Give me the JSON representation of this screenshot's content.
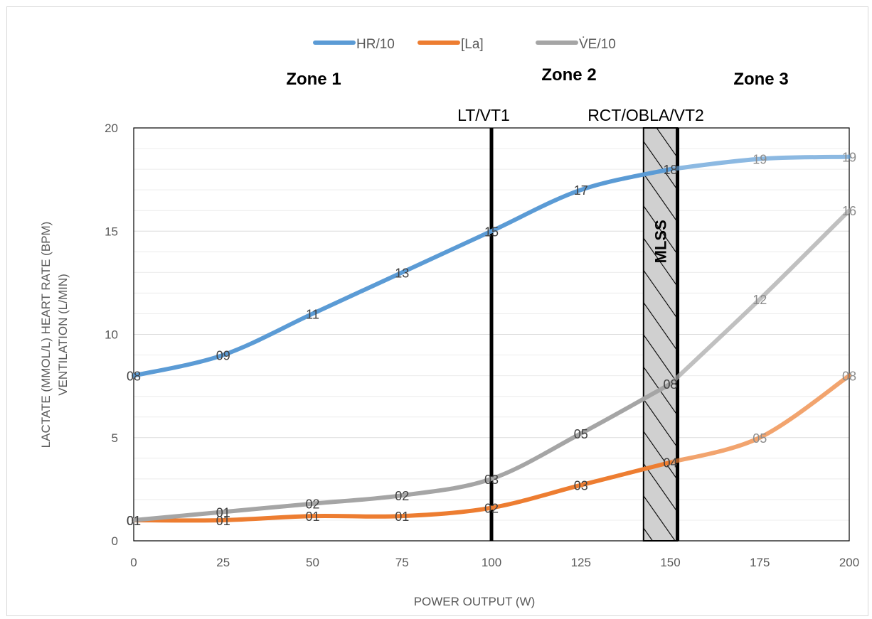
{
  "chart_data": {
    "type": "line",
    "title": "",
    "xlabel": "POWER OUTPUT (W)",
    "ylabel_line1": "LACTATE (MMOL/L)  HEART RATE (BPM)",
    "ylabel_line2": "VENTILATION (L/MIN)",
    "x": [
      0,
      25,
      50,
      75,
      100,
      125,
      150,
      175,
      200
    ],
    "x_ticks": [
      "0",
      "25",
      "50",
      "75",
      "100",
      "125",
      "150",
      "175",
      "200"
    ],
    "y_ticks": [
      "0",
      "5",
      "10",
      "15",
      "20"
    ],
    "xlim": [
      0,
      200
    ],
    "ylim": [
      0,
      20
    ],
    "grid": "horizontal minor gridlines",
    "legend_position": "top",
    "series": [
      {
        "name": "HR/10",
        "color": "#5B9BD5",
        "values": [
          8.0,
          9.0,
          11.0,
          13.0,
          15.0,
          17.0,
          18.0,
          18.5,
          18.6
        ],
        "labels": [
          "08",
          "09",
          "11",
          "13",
          "15",
          "17",
          "18",
          "19",
          "19"
        ]
      },
      {
        "name": "[La]",
        "color": "#ED7D31",
        "values": [
          1.0,
          1.0,
          1.2,
          1.2,
          1.6,
          2.7,
          3.8,
          5.0,
          8.0
        ],
        "labels": [
          "01",
          "01",
          "01",
          "01",
          "02",
          "03",
          "04",
          "05",
          "08"
        ]
      },
      {
        "name": "V̇E/10",
        "color": "#A5A5A5",
        "values": [
          1.0,
          1.4,
          1.8,
          2.2,
          3.0,
          5.2,
          7.6,
          11.7,
          16.0
        ],
        "labels": [
          "01",
          "01",
          "02",
          "02",
          "03",
          "05",
          "08",
          "12",
          "16"
        ]
      }
    ],
    "zone_labels": [
      "Zone 1",
      "Zone 2",
      "Zone 3"
    ],
    "threshold_lines": [
      {
        "label": "LT/VT1",
        "x": 100
      },
      {
        "label": "RCT/OBLA/VT2",
        "x": 152
      }
    ],
    "shaded_band": {
      "label": "MLSS",
      "x_from": 142.5,
      "x_to": 152
    },
    "faded_after_x": 150
  }
}
